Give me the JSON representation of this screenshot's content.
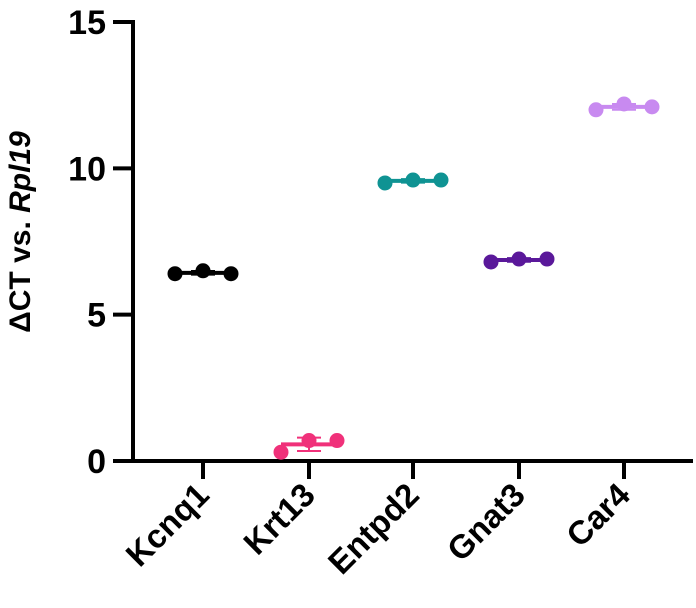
{
  "chart_data": {
    "type": "scatter",
    "ylabel_prefix": "ΔCT vs. ",
    "ylabel_italic": "Rpl19",
    "xlabel": "",
    "ylim": [
      0,
      15
    ],
    "yticks": [
      0,
      5,
      10,
      15
    ],
    "grid": false,
    "categories": [
      "Kcnq1",
      "Krt13",
      "Entpd2",
      "Gnat3",
      "Car4"
    ],
    "series": [
      {
        "category": "Kcnq1",
        "color": "#000000",
        "values": [
          6.4,
          6.5,
          6.4
        ],
        "mean": 6.43,
        "sd": 0.06
      },
      {
        "category": "Krt13",
        "color": "#f0317a",
        "values": [
          0.3,
          0.7,
          0.7
        ],
        "mean": 0.57,
        "sd": 0.23
      },
      {
        "category": "Entpd2",
        "color": "#0f9393",
        "values": [
          9.5,
          9.6,
          9.6
        ],
        "mean": 9.57,
        "sd": 0.06
      },
      {
        "category": "Gnat3",
        "color": "#5a189a",
        "values": [
          6.8,
          6.9,
          6.9
        ],
        "mean": 6.87,
        "sd": 0.06
      },
      {
        "category": "Car4",
        "color": "#c88af0",
        "values": [
          12.0,
          12.2,
          12.1
        ],
        "mean": 12.1,
        "sd": 0.1
      }
    ]
  }
}
